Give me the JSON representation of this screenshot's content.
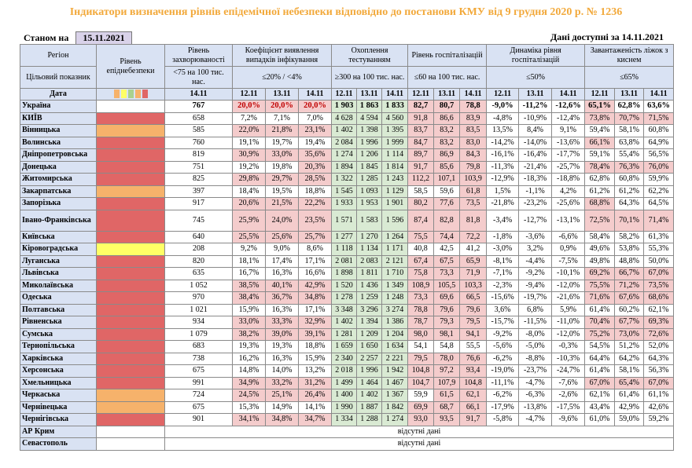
{
  "title": "Індикатори визначення рівнів епідемічної небезпеки відповідно до постанови КМУ від 9 грудня 2020 р. № 1236",
  "status_label": "Станом на",
  "status_date": "15.11.2021",
  "available_label": "Дані доступні за 14.11.2021",
  "headers": {
    "region": "Регіон",
    "indicator": "Цільовий показник",
    "date": "Дата",
    "level": "Рівень епіднебезпеки",
    "incidence": "Рівень захворюваності",
    "incidence_target": "<75 на 100 тис. нас.",
    "detect": "Коефіцієнт виявлення випадків інфікування",
    "detect_target": "≤20% / <4%",
    "testing": "Охоплення тестуванням",
    "testing_target": "≥300 на 100 тис. нас.",
    "hosp": "Рівень госпіталізацій",
    "hosp_target": "≤60 на 100 тис. нас.",
    "hosp_dyn": "Динаміка рівня госпіталізацій",
    "hosp_dyn_target": "≤50%",
    "beds": "Завантаженість ліжок з киснем",
    "beds_target": "≤65%",
    "d1411": "14.11",
    "d1311": "13.11",
    "d1211": "12.11"
  },
  "legend_colors": [
    "#F6B26B",
    "#FFFF66",
    "#A9D18E",
    "#F6B26B",
    "#E06666"
  ],
  "rows": [
    {
      "name": "Україна",
      "level": "",
      "inc": "767",
      "k": [
        "20,0%",
        "20,0%",
        "20,0%"
      ],
      "t": [
        "1 903",
        "1 863",
        "1 833"
      ],
      "h": [
        "82,7",
        "80,7",
        "78,8"
      ],
      "dy": [
        "-9,0%",
        "-11,2%",
        "-12,6%"
      ],
      "b": [
        "65,1%",
        "62,8%",
        "63,6%"
      ]
    },
    {
      "name": "КИЇВ",
      "level": "red",
      "inc": "658",
      "k": [
        "7,2%",
        "7,1%",
        "7,0%"
      ],
      "t": [
        "4 628",
        "4 594",
        "4 560"
      ],
      "h": [
        "91,8",
        "86,6",
        "83,9"
      ],
      "dy": [
        "-4,8%",
        "-10,9%",
        "-12,4%"
      ],
      "b": [
        "73,8%",
        "70,7%",
        "71,5%"
      ]
    },
    {
      "name": "Вінницька",
      "level": "orange",
      "inc": "585",
      "k": [
        "22,0%",
        "21,8%",
        "23,1%"
      ],
      "t": [
        "1 402",
        "1 398",
        "1 395"
      ],
      "h": [
        "83,7",
        "83,2",
        "83,5"
      ],
      "dy": [
        "13,5%",
        "8,4%",
        "9,1%"
      ],
      "b": [
        "59,4%",
        "58,1%",
        "60,8%"
      ]
    },
    {
      "name": "Волинська",
      "level": "red",
      "inc": "760",
      "k": [
        "19,1%",
        "19,7%",
        "19,4%"
      ],
      "t": [
        "2 084",
        "1 996",
        "1 999"
      ],
      "h": [
        "84,7",
        "83,2",
        "83,0"
      ],
      "dy": [
        "-14,2%",
        "-14,0%",
        "-13,6%"
      ],
      "b": [
        "66,1%",
        "63,8%",
        "64,9%"
      ]
    },
    {
      "name": "Дніпропетровська",
      "level": "red",
      "inc": "819",
      "k": [
        "30,9%",
        "33,0%",
        "35,6%"
      ],
      "t": [
        "1 274",
        "1 206",
        "1 114"
      ],
      "h": [
        "89,7",
        "86,9",
        "84,3"
      ],
      "dy": [
        "-16,1%",
        "-16,4%",
        "-17,7%"
      ],
      "b": [
        "59,1%",
        "55,4%",
        "56,5%"
      ]
    },
    {
      "name": "Донецька",
      "level": "red",
      "inc": "751",
      "k": [
        "19,2%",
        "19,8%",
        "20,3%"
      ],
      "t": [
        "1 894",
        "1 845",
        "1 814"
      ],
      "h": [
        "91,7",
        "85,6",
        "79,8"
      ],
      "dy": [
        "-11,3%",
        "-21,4%",
        "-25,7%"
      ],
      "b": [
        "78,4%",
        "76,3%",
        "76,0%"
      ]
    },
    {
      "name": "Житомирська",
      "level": "red",
      "inc": "825",
      "k": [
        "29,8%",
        "29,7%",
        "28,5%"
      ],
      "t": [
        "1 322",
        "1 285",
        "1 243"
      ],
      "h": [
        "112,2",
        "107,1",
        "103,9"
      ],
      "dy": [
        "-12,9%",
        "-18,3%",
        "-18,8%"
      ],
      "b": [
        "62,8%",
        "60,8%",
        "59,9%"
      ]
    },
    {
      "name": "Закарпатська",
      "level": "orange",
      "inc": "397",
      "k": [
        "18,4%",
        "19,5%",
        "18,8%"
      ],
      "t": [
        "1 545",
        "1 093",
        "1 129"
      ],
      "h": [
        "58,5",
        "59,6",
        "61,8"
      ],
      "dy": [
        "1,5%",
        "-1,1%",
        "4,2%"
      ],
      "b": [
        "61,2%",
        "61,2%",
        "62,2%"
      ]
    },
    {
      "name": "Запорізька",
      "level": "red",
      "inc": "917",
      "k": [
        "20,6%",
        "21,5%",
        "22,2%"
      ],
      "t": [
        "1 933",
        "1 953",
        "1 901"
      ],
      "h": [
        "80,2",
        "77,6",
        "73,5"
      ],
      "dy": [
        "-21,8%",
        "-23,2%",
        "-25,6%"
      ],
      "b": [
        "68,8%",
        "64,3%",
        "64,5%"
      ]
    },
    {
      "name": "Івано-Франківська",
      "level": "red",
      "inc": "745",
      "k": [
        "25,9%",
        "24,0%",
        "23,5%"
      ],
      "t": [
        "1 571",
        "1 583",
        "1 596"
      ],
      "h": [
        "87,4",
        "82,8",
        "81,8"
      ],
      "dy": [
        "-3,4%",
        "-12,7%",
        "-13,1%"
      ],
      "b": [
        "72,5%",
        "70,1%",
        "71,4%"
      ]
    },
    {
      "name": "Київська",
      "level": "red",
      "inc": "640",
      "k": [
        "25,5%",
        "25,6%",
        "25,7%"
      ],
      "t": [
        "1 277",
        "1 270",
        "1 264"
      ],
      "h": [
        "75,5",
        "74,4",
        "72,2"
      ],
      "dy": [
        "-1,8%",
        "-3,6%",
        "-6,6%"
      ],
      "b": [
        "58,4%",
        "58,2%",
        "61,3%"
      ]
    },
    {
      "name": "Кіровоградська",
      "level": "yellow",
      "inc": "208",
      "k": [
        "9,2%",
        "9,0%",
        "8,6%"
      ],
      "t": [
        "1 118",
        "1 134",
        "1 171"
      ],
      "h": [
        "40,8",
        "42,5",
        "41,2"
      ],
      "dy": [
        "-3,0%",
        "3,2%",
        "0,9%"
      ],
      "b": [
        "49,6%",
        "53,8%",
        "55,3%"
      ]
    },
    {
      "name": "Луганська",
      "level": "red",
      "inc": "820",
      "k": [
        "18,1%",
        "17,4%",
        "17,1%"
      ],
      "t": [
        "2 081",
        "2 083",
        "2 121"
      ],
      "h": [
        "67,4",
        "67,5",
        "65,9"
      ],
      "dy": [
        "-8,1%",
        "-4,4%",
        "-7,5%"
      ],
      "b": [
        "49,8%",
        "48,8%",
        "50,0%"
      ]
    },
    {
      "name": "Львівська",
      "level": "red",
      "inc": "635",
      "k": [
        "16,7%",
        "16,3%",
        "16,6%"
      ],
      "t": [
        "1 898",
        "1 811",
        "1 710"
      ],
      "h": [
        "75,8",
        "73,3",
        "71,9"
      ],
      "dy": [
        "-7,1%",
        "-9,2%",
        "-10,1%"
      ],
      "b": [
        "69,2%",
        "66,7%",
        "67,0%"
      ]
    },
    {
      "name": "Миколаївська",
      "level": "red",
      "inc": "1 052",
      "k": [
        "38,5%",
        "40,1%",
        "42,9%"
      ],
      "t": [
        "1 520",
        "1 436",
        "1 349"
      ],
      "h": [
        "108,9",
        "105,5",
        "103,3"
      ],
      "dy": [
        "-2,3%",
        "-9,4%",
        "-12,0%"
      ],
      "b": [
        "75,5%",
        "71,2%",
        "73,5%"
      ]
    },
    {
      "name": "Одеська",
      "level": "red",
      "inc": "970",
      "k": [
        "38,4%",
        "36,7%",
        "34,8%"
      ],
      "t": [
        "1 278",
        "1 259",
        "1 248"
      ],
      "h": [
        "73,3",
        "69,6",
        "66,5"
      ],
      "dy": [
        "-15,6%",
        "-19,7%",
        "-21,6%"
      ],
      "b": [
        "71,6%",
        "67,6%",
        "68,6%"
      ]
    },
    {
      "name": "Полтавська",
      "level": "red",
      "inc": "1 021",
      "k": [
        "15,9%",
        "16,3%",
        "17,1%"
      ],
      "t": [
        "3 348",
        "3 296",
        "3 274"
      ],
      "h": [
        "78,8",
        "79,6",
        "79,6"
      ],
      "dy": [
        "3,6%",
        "6,8%",
        "5,9%"
      ],
      "b": [
        "61,4%",
        "60,2%",
        "62,1%"
      ]
    },
    {
      "name": "Рівненська",
      "level": "red",
      "inc": "934",
      "k": [
        "33,0%",
        "33,3%",
        "32,9%"
      ],
      "t": [
        "1 402",
        "1 394",
        "1 386"
      ],
      "h": [
        "78,7",
        "79,3",
        "79,5"
      ],
      "dy": [
        "-15,7%",
        "-11,5%",
        "-11,0%"
      ],
      "b": [
        "70,4%",
        "67,7%",
        "69,3%"
      ]
    },
    {
      "name": "Сумська",
      "level": "red",
      "inc": "1 079",
      "k": [
        "38,2%",
        "39,0%",
        "39,1%"
      ],
      "t": [
        "1 281",
        "1 209",
        "1 204"
      ],
      "h": [
        "98,0",
        "98,1",
        "94,1"
      ],
      "dy": [
        "-9,2%",
        "-8,0%",
        "-12,0%"
      ],
      "b": [
        "75,2%",
        "73,0%",
        "72,6%"
      ]
    },
    {
      "name": "Тернопільська",
      "level": "red",
      "inc": "683",
      "k": [
        "19,3%",
        "19,3%",
        "18,8%"
      ],
      "t": [
        "1 659",
        "1 650",
        "1 634"
      ],
      "h": [
        "54,1",
        "54,8",
        "55,5"
      ],
      "dy": [
        "-5,6%",
        "-5,0%",
        "-0,3%"
      ],
      "b": [
        "54,5%",
        "51,2%",
        "52,0%"
      ]
    },
    {
      "name": "Харківська",
      "level": "red",
      "inc": "738",
      "k": [
        "16,2%",
        "16,3%",
        "15,9%"
      ],
      "t": [
        "2 340",
        "2 257",
        "2 221"
      ],
      "h": [
        "79,5",
        "78,0",
        "76,6"
      ],
      "dy": [
        "-6,2%",
        "-8,8%",
        "-10,3%"
      ],
      "b": [
        "64,4%",
        "64,2%",
        "64,3%"
      ]
    },
    {
      "name": "Херсонська",
      "level": "red",
      "inc": "675",
      "k": [
        "14,8%",
        "14,0%",
        "13,2%"
      ],
      "t": [
        "2 018",
        "1 996",
        "1 942"
      ],
      "h": [
        "104,8",
        "97,2",
        "93,4"
      ],
      "dy": [
        "-19,0%",
        "-23,7%",
        "-24,7%"
      ],
      "b": [
        "61,4%",
        "58,1%",
        "56,3%"
      ]
    },
    {
      "name": "Хмельницька",
      "level": "red",
      "inc": "991",
      "k": [
        "34,9%",
        "33,2%",
        "31,2%"
      ],
      "t": [
        "1 499",
        "1 464",
        "1 467"
      ],
      "h": [
        "104,7",
        "107,9",
        "104,8"
      ],
      "dy": [
        "-11,1%",
        "-4,7%",
        "-7,6%"
      ],
      "b": [
        "67,0%",
        "65,4%",
        "67,0%"
      ]
    },
    {
      "name": "Черкаська",
      "level": "orange",
      "inc": "724",
      "k": [
        "24,5%",
        "25,1%",
        "26,4%"
      ],
      "t": [
        "1 400",
        "1 402",
        "1 367"
      ],
      "h": [
        "59,9",
        "61,5",
        "62,1"
      ],
      "dy": [
        "-6,2%",
        "-6,3%",
        "-2,6%"
      ],
      "b": [
        "62,1%",
        "61,4%",
        "61,1%"
      ]
    },
    {
      "name": "Чернівецька",
      "level": "orange",
      "inc": "675",
      "k": [
        "15,3%",
        "14,9%",
        "14,1%"
      ],
      "t": [
        "1 990",
        "1 887",
        "1 842"
      ],
      "h": [
        "69,9",
        "68,7",
        "66,1"
      ],
      "dy": [
        "-17,9%",
        "-13,8%",
        "-17,5%"
      ],
      "b": [
        "43,4%",
        "42,9%",
        "42,6%"
      ]
    },
    {
      "name": "Чернігівська",
      "level": "red",
      "inc": "901",
      "k": [
        "34,1%",
        "34,8%",
        "34,7%"
      ],
      "t": [
        "1 334",
        "1 288",
        "1 274"
      ],
      "h": [
        "93,0",
        "93,5",
        "91,7"
      ],
      "dy": [
        "-5,8%",
        "-4,7%",
        "-9,6%"
      ],
      "b": [
        "61,0%",
        "59,0%",
        "59,2%"
      ]
    }
  ],
  "missing_rows": [
    {
      "name": "АР Крим",
      "note": "відсутні дані"
    },
    {
      "name": "Севастополь",
      "note": "відсутні дані"
    }
  ]
}
